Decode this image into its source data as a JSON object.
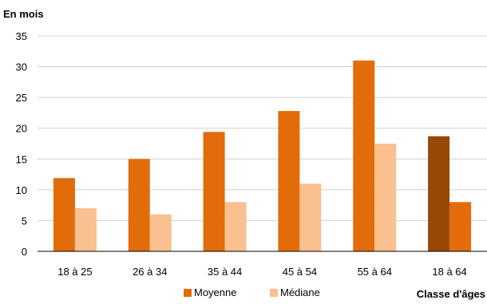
{
  "chart_data": {
    "type": "bar",
    "title": "",
    "ylabel": "En mois",
    "xlabel": "Classe d'âges",
    "categories": [
      "18 à 25",
      "26 à 34",
      "35 à 44",
      "45 à 54",
      "55 à 64",
      "18 à 64"
    ],
    "series": [
      {
        "name": "Moyenne",
        "values": [
          11.9,
          15.0,
          19.4,
          22.8,
          31.0,
          18.7
        ],
        "color": "#E36C0A"
      },
      {
        "name": "Médiane",
        "values": [
          7.0,
          6.0,
          8.0,
          11.0,
          17.5,
          8.0
        ],
        "color": "#FAC090"
      }
    ],
    "highlight": {
      "category": "18 à 64",
      "colors": [
        "#984807",
        "#E36C0A"
      ]
    },
    "ylim": [
      0,
      35
    ],
    "yticks": [
      "0",
      "5",
      "10",
      "15",
      "20",
      "25",
      "30",
      "35"
    ],
    "grid": true,
    "legend_position": "bottom",
    "plot_background": "#ffffff",
    "grid_color": "#d0d0d0"
  }
}
